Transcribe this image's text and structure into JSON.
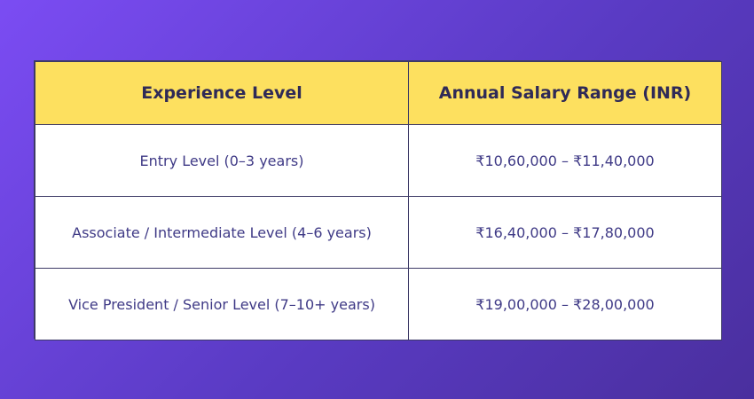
{
  "table": {
    "headers": [
      "Experience Level",
      "Annual Salary Range (INR)"
    ],
    "rows": [
      [
        "Entry Level (0–3 years)",
        "₹10,60,000 – ₹11,40,000"
      ],
      [
        "Associate / Intermediate Level (4–6 years)",
        "₹16,40,000 – ₹17,80,000"
      ],
      [
        "Vice President / Senior Level (7–10+ years)",
        "₹19,00,000 – ₹28,00,000"
      ]
    ]
  },
  "colors": {
    "background_start": "#7b4cf3",
    "background_end": "#4a2f9e",
    "header_bg": "#fde05f",
    "header_text": "#2f2a57",
    "cell_text": "#3f3a86",
    "border": "#3d3a66"
  }
}
